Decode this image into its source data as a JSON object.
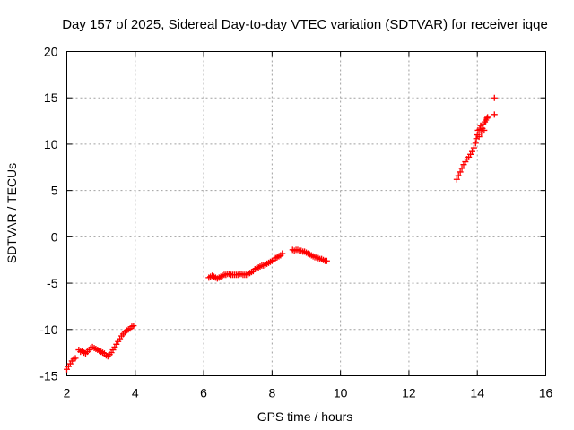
{
  "chart_data": {
    "type": "scatter",
    "title": "Day 157 of 2025, Sidereal Day-to-day VTEC variation (SDTVAR) for receiver iqqe",
    "xlabel": "GPS time / hours",
    "ylabel": "SDTVAR / TECUs",
    "xlim": [
      2,
      16
    ],
    "ylim": [
      -15,
      20
    ],
    "xticks": [
      "2",
      "4",
      "6",
      "8",
      "10",
      "12",
      "14",
      "16"
    ],
    "yticks": [
      "-15",
      "-10",
      "-5",
      "0",
      "5",
      "10",
      "15",
      "20"
    ],
    "grid": true,
    "marker": "+",
    "color": "#ff0000",
    "series": [
      {
        "name": "SDTVAR",
        "x": [
          2.0,
          2.05,
          2.1,
          2.15,
          2.2,
          2.25,
          2.35,
          2.4,
          2.45,
          2.5,
          2.55,
          2.6,
          2.65,
          2.7,
          2.75,
          2.8,
          2.85,
          2.9,
          2.95,
          3.0,
          3.05,
          3.1,
          3.15,
          3.2,
          3.25,
          3.3,
          3.35,
          3.4,
          3.45,
          3.5,
          3.55,
          3.6,
          3.65,
          3.7,
          3.75,
          3.8,
          3.85,
          3.9,
          3.95,
          6.15,
          6.2,
          6.25,
          6.3,
          6.35,
          6.4,
          6.45,
          6.5,
          6.55,
          6.6,
          6.65,
          6.7,
          6.75,
          6.8,
          6.85,
          6.9,
          6.95,
          7.0,
          7.05,
          7.1,
          7.15,
          7.2,
          7.25,
          7.3,
          7.35,
          7.4,
          7.45,
          7.5,
          7.55,
          7.6,
          7.65,
          7.7,
          7.75,
          7.8,
          7.85,
          7.9,
          7.95,
          8.0,
          8.05,
          8.1,
          8.15,
          8.2,
          8.25,
          8.3,
          8.6,
          8.65,
          8.7,
          8.75,
          8.8,
          8.85,
          8.9,
          8.95,
          9.0,
          9.05,
          9.1,
          9.15,
          9.2,
          9.25,
          9.3,
          9.35,
          9.4,
          9.45,
          9.5,
          9.55,
          9.6,
          13.4,
          13.45,
          13.5,
          13.55,
          13.6,
          13.65,
          13.7,
          13.75,
          13.8,
          13.85,
          13.9,
          13.95,
          13.97,
          14.0,
          14.02,
          14.05,
          14.07,
          14.1,
          14.12,
          14.15,
          14.17,
          14.2,
          14.22,
          14.25,
          14.28,
          14.3,
          14.5,
          14.5
        ],
        "y": [
          -14.3,
          -14.0,
          -13.7,
          -13.4,
          -13.2,
          -13.1,
          -12.2,
          -12.4,
          -12.3,
          -12.5,
          -12.6,
          -12.4,
          -12.2,
          -12.0,
          -11.9,
          -12.0,
          -12.1,
          -12.2,
          -12.3,
          -12.4,
          -12.5,
          -12.6,
          -12.8,
          -12.9,
          -12.7,
          -12.5,
          -12.2,
          -11.9,
          -11.6,
          -11.3,
          -11.0,
          -10.7,
          -10.5,
          -10.3,
          -10.1,
          -10.0,
          -9.9,
          -9.7,
          -9.6,
          -4.4,
          -4.3,
          -4.2,
          -4.3,
          -4.4,
          -4.5,
          -4.4,
          -4.3,
          -4.2,
          -4.1,
          -4.1,
          -4.0,
          -4.0,
          -4.1,
          -4.1,
          -4.1,
          -4.1,
          -4.1,
          -4.0,
          -4.0,
          -4.1,
          -4.1,
          -4.1,
          -4.0,
          -3.9,
          -3.8,
          -3.7,
          -3.5,
          -3.4,
          -3.3,
          -3.2,
          -3.1,
          -3.1,
          -3.0,
          -2.9,
          -2.8,
          -2.7,
          -2.6,
          -2.5,
          -2.3,
          -2.2,
          -2.1,
          -2.0,
          -1.8,
          -1.4,
          -1.5,
          -1.4,
          -1.4,
          -1.5,
          -1.5,
          -1.6,
          -1.6,
          -1.7,
          -1.8,
          -1.9,
          -2.0,
          -2.1,
          -2.2,
          -2.2,
          -2.3,
          -2.4,
          -2.4,
          -2.5,
          -2.6,
          -2.6,
          6.2,
          6.6,
          7.0,
          7.4,
          7.8,
          8.1,
          8.4,
          8.6,
          8.9,
          9.2,
          9.6,
          10.1,
          10.6,
          11.0,
          11.5,
          10.8,
          11.6,
          12.0,
          11.2,
          11.7,
          12.2,
          11.5,
          12.4,
          12.6,
          12.8,
          12.9,
          13.2,
          15.0
        ]
      }
    ]
  }
}
